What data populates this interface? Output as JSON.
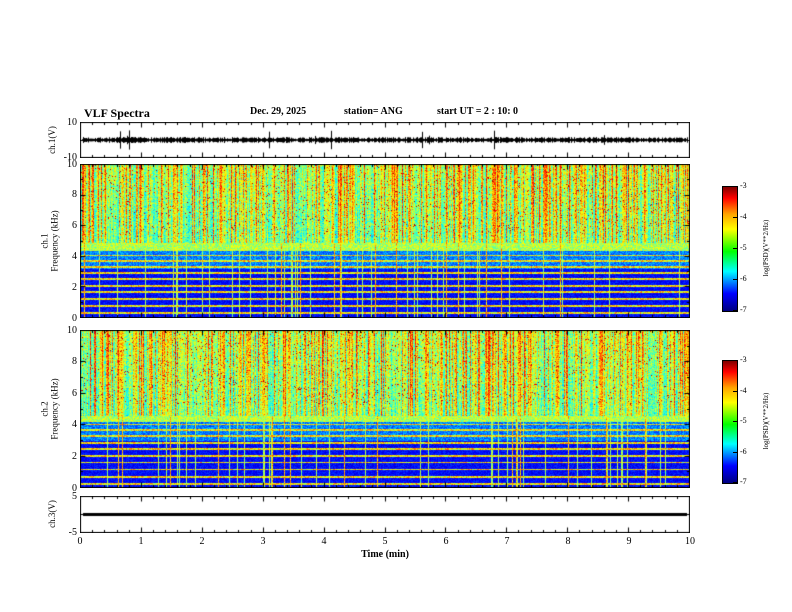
{
  "header": {
    "title": "VLF Spectra",
    "date": "Dec. 29, 2025",
    "station": "station= ANG",
    "start_ut": "start UT =  2 : 10: 0"
  },
  "xaxis": {
    "label": "Time (min)",
    "range": [
      0,
      10
    ],
    "tick_labels": [
      "0",
      "1",
      "2",
      "3",
      "4",
      "5",
      "6",
      "7",
      "8",
      "9",
      "10"
    ]
  },
  "colorbar": {
    "label": "log(PSD)(V**2/Hz)",
    "tick_labels": [
      "-3",
      "-4",
      "-5",
      "-6",
      "-7"
    ],
    "value_range": [
      -7,
      -3
    ]
  },
  "chart_data": [
    {
      "type": "line",
      "panel": "ch1-waveform",
      "ylabel": "ch.1(V)",
      "ylim": [
        -10,
        10
      ],
      "ytick_labels": [
        "10",
        "-10"
      ],
      "signal": "broadband noise centered on 0 V with intermittent impulsive spikes up to about +/-8 V",
      "seed": 7
    },
    {
      "type": "heatmap",
      "panel": "ch1-spectrogram",
      "ylabel_lines": [
        "ch.1",
        "Frequency (kHz)"
      ],
      "ylim_khz": [
        0,
        10
      ],
      "ytick_labels": [
        "10",
        "8",
        "6",
        "4",
        "2",
        "0"
      ],
      "xrange_min": [
        0,
        10
      ],
      "value_range": [
        -7,
        -3
      ],
      "active_band_khz": [
        4.9,
        10
      ],
      "green_band_khz": [
        4.4,
        4.9
      ],
      "speckle_band_khz": [
        3.2,
        4.4
      ],
      "horizontal_emission_lines_khz": [
        0.35,
        0.8,
        1.25,
        1.7,
        2.1,
        2.55,
        2.95,
        3.35,
        3.75,
        4.1
      ],
      "seed": 101
    },
    {
      "type": "heatmap",
      "panel": "ch2-spectrogram",
      "ylabel_lines": [
        "ch.2",
        "Frequency (kHz)"
      ],
      "ylim_khz": [
        0,
        10
      ],
      "ytick_labels": [
        "10",
        "8",
        "6",
        "4",
        "2",
        "0"
      ],
      "xrange_min": [
        0,
        10
      ],
      "value_range": [
        -7,
        -3
      ],
      "active_band_khz": [
        4.6,
        10
      ],
      "green_band_khz": [
        4.2,
        4.6
      ],
      "speckle_band_khz": [
        3.0,
        4.2
      ],
      "horizontal_emission_lines_khz": [
        0.3,
        0.75,
        1.2,
        1.65,
        2.05,
        2.5,
        2.9,
        3.3,
        3.7,
        4.05
      ],
      "seed": 202
    },
    {
      "type": "line",
      "panel": "ch3-level",
      "ylabel": "ch.3(V)",
      "ylim": [
        -5,
        5
      ],
      "ytick_labels": [
        "5",
        "-5"
      ],
      "signal": "constant flat level near 0 V (thick solid line)",
      "seed": 9
    }
  ]
}
